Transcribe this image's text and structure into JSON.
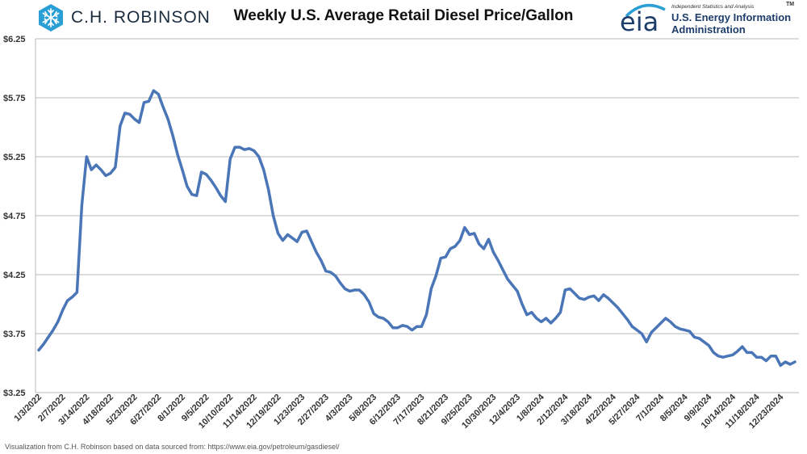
{
  "header": {
    "company": "C.H. ROBINSON",
    "title": "Weekly U.S. Average Retail Diesel Price/Gallon",
    "eia_mark": "eia",
    "eia_tagline": "Independent Statistics and Analysis",
    "eia_name_line1": "U.S. Energy Information",
    "eia_name_line2": "Administration",
    "eia_tm": "TM"
  },
  "footer": {
    "source": "Visualization from C.H. Robinson based on data sourced from: https://www.eia.gov/petroleum/gasdiesel/"
  },
  "chart_data": {
    "type": "line",
    "title": "Weekly U.S. Average Retail Diesel Price/Gallon",
    "xlabel": "",
    "ylabel": "",
    "ylim": [
      3.25,
      6.25
    ],
    "y_ticks": [
      "$6.25",
      "$5.75",
      "$5.25",
      "$4.75",
      "$4.25",
      "$3.75",
      "$3.25"
    ],
    "grid": true,
    "legend": "none",
    "line_color": "#4a76b8",
    "x_tick_labels": [
      "1/3/2022",
      "2/7/2022",
      "3/14/2022",
      "4/18/2022",
      "5/23/2022",
      "6/27/2022",
      "8/1/2022",
      "9/5/2022",
      "10/10/2022",
      "11/14/2022",
      "12/19/2022",
      "1/23/2023",
      "2/27/2023",
      "4/3/2023",
      "5/8/2023",
      "6/12/2023",
      "7/17/2023",
      "8/21/2023",
      "9/25/2023",
      "10/30/2023",
      "12/4/2023",
      "1/8/2024",
      "2/12/2024",
      "3/18/2024",
      "4/22/2024",
      "5/27/2024",
      "7/1/2024",
      "8/5/2024",
      "9/9/2024",
      "10/14/2024",
      "11/18/2024",
      "12/23/2024"
    ],
    "series": [
      {
        "values": [
          3.61,
          3.66,
          3.72,
          3.78,
          3.85,
          3.95,
          4.03,
          4.06,
          4.1,
          4.84,
          5.25,
          5.14,
          5.18,
          5.14,
          5.09,
          5.11,
          5.16,
          5.51,
          5.62,
          5.61,
          5.57,
          5.54,
          5.71,
          5.72,
          5.81,
          5.78,
          5.67,
          5.57,
          5.43,
          5.27,
          5.14,
          5.0,
          4.93,
          4.92,
          5.12,
          5.1,
          5.05,
          4.99,
          4.92,
          4.87,
          5.23,
          5.33,
          5.33,
          5.31,
          5.32,
          5.3,
          5.25,
          5.14,
          4.97,
          4.75,
          4.6,
          4.54,
          4.59,
          4.56,
          4.53,
          4.61,
          4.62,
          4.53,
          4.44,
          4.37,
          4.28,
          4.27,
          4.24,
          4.18,
          4.13,
          4.11,
          4.12,
          4.12,
          4.08,
          4.02,
          3.92,
          3.89,
          3.88,
          3.85,
          3.8,
          3.8,
          3.82,
          3.81,
          3.78,
          3.81,
          3.81,
          3.91,
          4.13,
          4.24,
          4.39,
          4.4,
          4.47,
          4.49,
          4.54,
          4.65,
          4.59,
          4.6,
          4.51,
          4.47,
          4.55,
          4.44,
          4.37,
          4.29,
          4.21,
          4.16,
          4.11,
          4.0,
          3.91,
          3.93,
          3.88,
          3.85,
          3.88,
          3.84,
          3.88,
          3.93,
          4.12,
          4.13,
          4.09,
          4.05,
          4.04,
          4.06,
          4.07,
          4.03,
          4.08,
          4.05,
          4.01,
          3.97,
          3.92,
          3.87,
          3.81,
          3.78,
          3.75,
          3.68,
          3.76,
          3.8,
          3.84,
          3.88,
          3.85,
          3.81,
          3.79,
          3.78,
          3.77,
          3.72,
          3.71,
          3.68,
          3.65,
          3.59,
          3.56,
          3.55,
          3.56,
          3.57,
          3.6,
          3.64,
          3.59,
          3.59,
          3.55,
          3.55,
          3.52,
          3.56,
          3.56,
          3.48,
          3.51,
          3.49,
          3.51
        ]
      }
    ]
  }
}
